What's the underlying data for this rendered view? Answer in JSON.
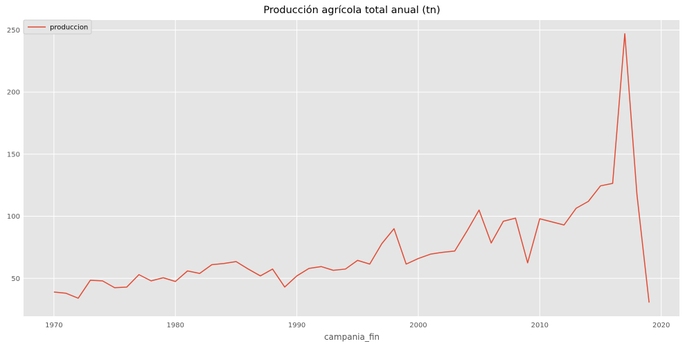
{
  "chart_data": {
    "type": "line",
    "title": "Producción agrícola total anual (tn)",
    "xlabel": "campania_fin",
    "ylabel": "",
    "xlim": [
      1967.5,
      2021.5
    ],
    "ylim": [
      19.5,
      258
    ],
    "x_ticks": [
      1970,
      1980,
      1990,
      2000,
      2010,
      2020
    ],
    "y_ticks": [
      50,
      100,
      150,
      200,
      250
    ],
    "grid": true,
    "legend_position": "top-left",
    "colors": {
      "background": "#e5e5e5",
      "grid": "#ffffff",
      "line": "#e24a33",
      "legend_frame": "#cccccc"
    },
    "series": [
      {
        "name": "produccion",
        "x": [
          1970,
          1971,
          1972,
          1973,
          1974,
          1975,
          1976,
          1977,
          1978,
          1979,
          1980,
          1981,
          1982,
          1983,
          1984,
          1985,
          1986,
          1987,
          1988,
          1989,
          1990,
          1991,
          1992,
          1993,
          1994,
          1995,
          1996,
          1997,
          1998,
          1999,
          2000,
          2001,
          2002,
          2003,
          2004,
          2005,
          2006,
          2007,
          2008,
          2009,
          2010,
          2011,
          2012,
          2013,
          2014,
          2015,
          2016,
          2017,
          2018,
          2019
        ],
        "y": [
          39,
          38,
          34,
          48.5,
          48,
          42.5,
          43,
          53,
          48,
          50.5,
          47.5,
          56,
          54,
          61,
          62,
          63.5,
          57.5,
          52,
          57.5,
          43,
          52,
          58,
          59.5,
          56.5,
          57.5,
          64.5,
          61.5,
          78,
          90,
          61.5,
          66,
          69.5,
          71,
          72,
          88,
          105,
          78.5,
          96,
          98.5,
          62.5,
          98,
          95.5,
          93,
          106.5,
          112,
          124.5,
          126.5,
          247,
          117.5,
          30.5
        ]
      }
    ]
  }
}
